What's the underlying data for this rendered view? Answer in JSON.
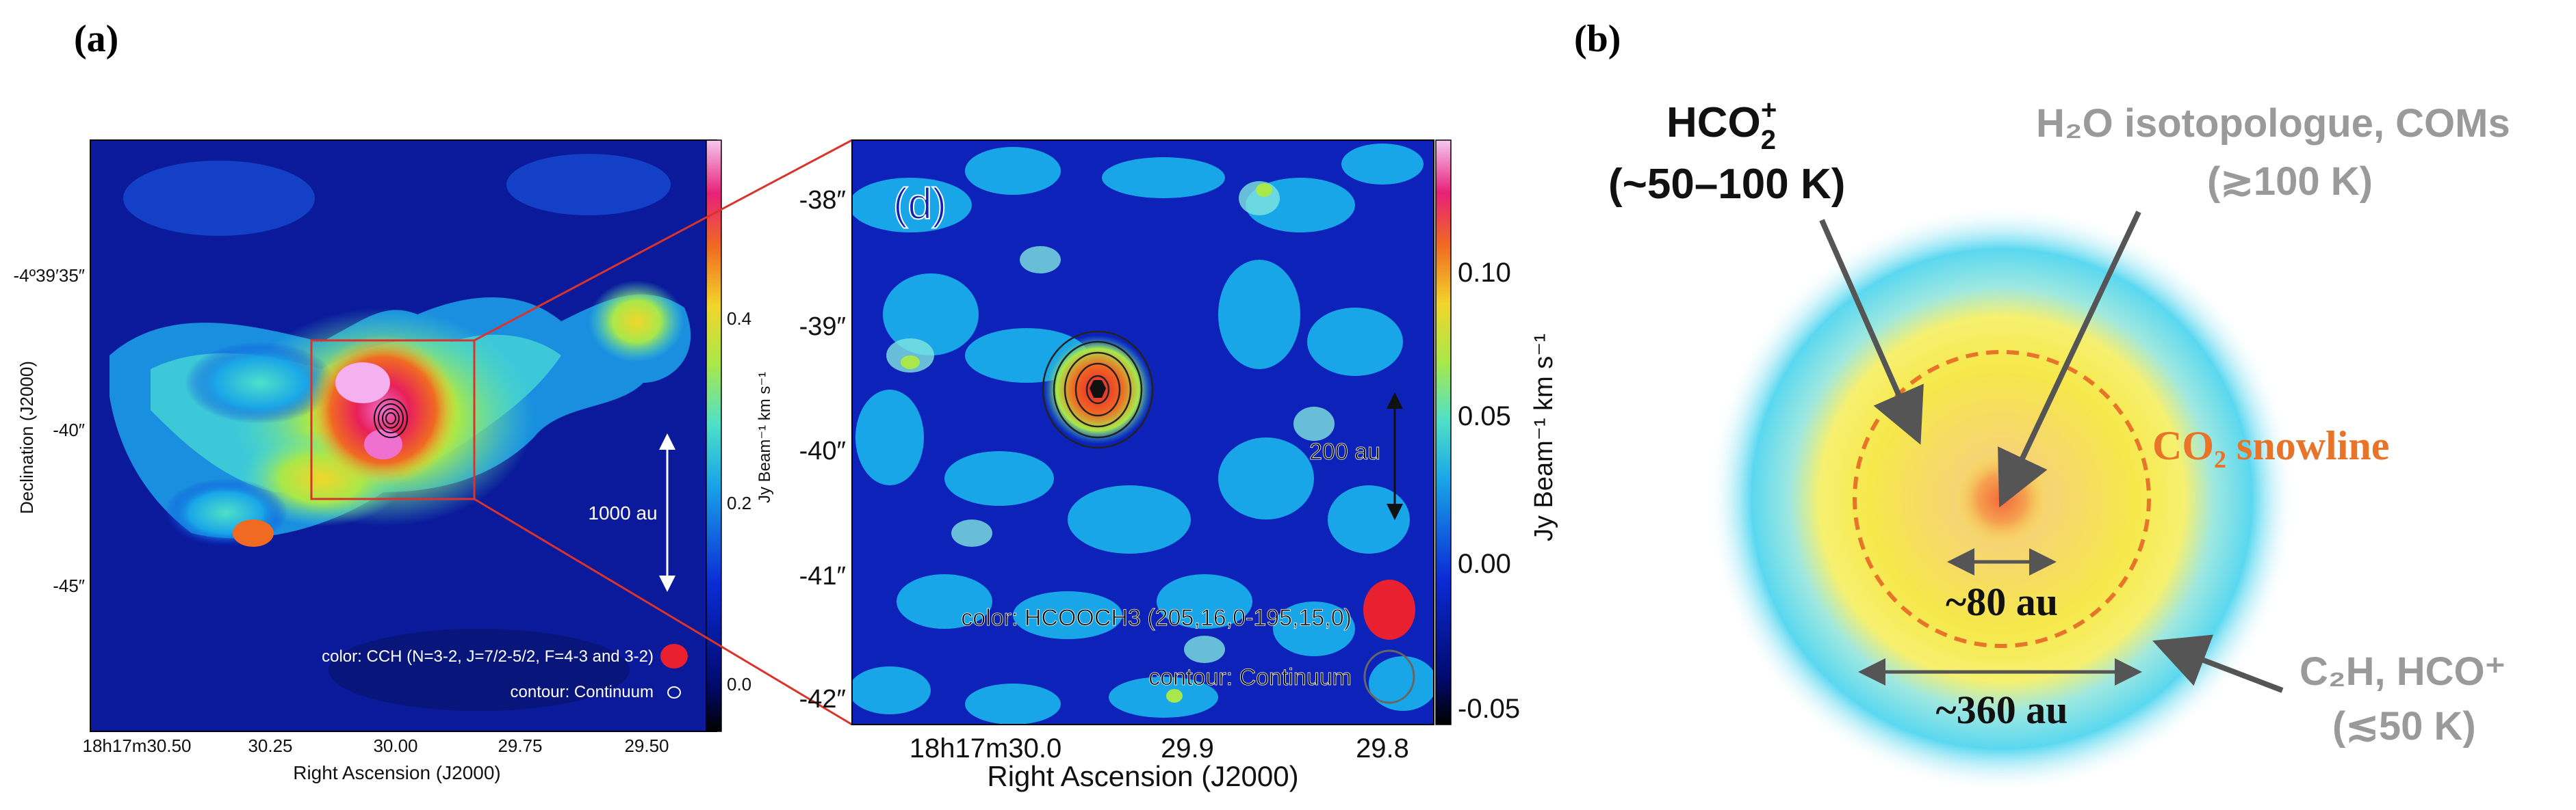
{
  "panel_a": {
    "label": "(a)",
    "y_ticks": [
      "-4º39′35″",
      "-40″",
      "-45″"
    ],
    "x_ticks": [
      "18h17m30.50",
      "30.25",
      "30.00",
      "29.75",
      "29.50"
    ],
    "y_label": "Declination (J2000)",
    "x_label": "Right Ascension (J2000)",
    "colorbar_ticks": [
      "0.4",
      "0.2",
      "0.0"
    ],
    "colorbar_label": "Jy Beam⁻¹ km s⁻¹",
    "scale_label": "1000 au",
    "legend_color": "color: CCH (N=3-2, J=7/2-5/2, F=4-3 and 3-2)",
    "legend_contour": "contour: Continuum"
  },
  "panel_d": {
    "label": "(d)",
    "y_ticks": [
      "-38″",
      "-39″",
      "-40″",
      "-41″",
      "-42″"
    ],
    "x_ticks": [
      "18h17m30.0",
      "29.9",
      "29.8"
    ],
    "x_label": "Right Ascension (J2000)",
    "colorbar_ticks": [
      "0.10",
      "0.05",
      "0.00",
      "-0.05"
    ],
    "colorbar_label": "Jy Beam⁻¹ km s⁻¹",
    "scale_label": "200 au",
    "legend_color": "color: HCOOCH3 (205,16,0-195,15,0)",
    "legend_contour": "contour: Continuum"
  },
  "panel_b": {
    "label": "(b)",
    "hco2_label": "HCO2+",
    "hco2_temp": "(~50–100 K)",
    "h2o_label": "H₂O isotopologue, COMs",
    "h2o_temp": "(≳100 K)",
    "snowline_label": "CO₂ snowline",
    "inner_size": "~80 au",
    "outer_size": "~360 au",
    "c2h_label": "C₂H, HCO⁺",
    "c2h_temp": "(≲50 K)"
  },
  "colors": {
    "snowline": "#e8742a",
    "gray_text": "#9a9a9a",
    "arrow": "#555555",
    "frame_red": "#d9342b"
  }
}
